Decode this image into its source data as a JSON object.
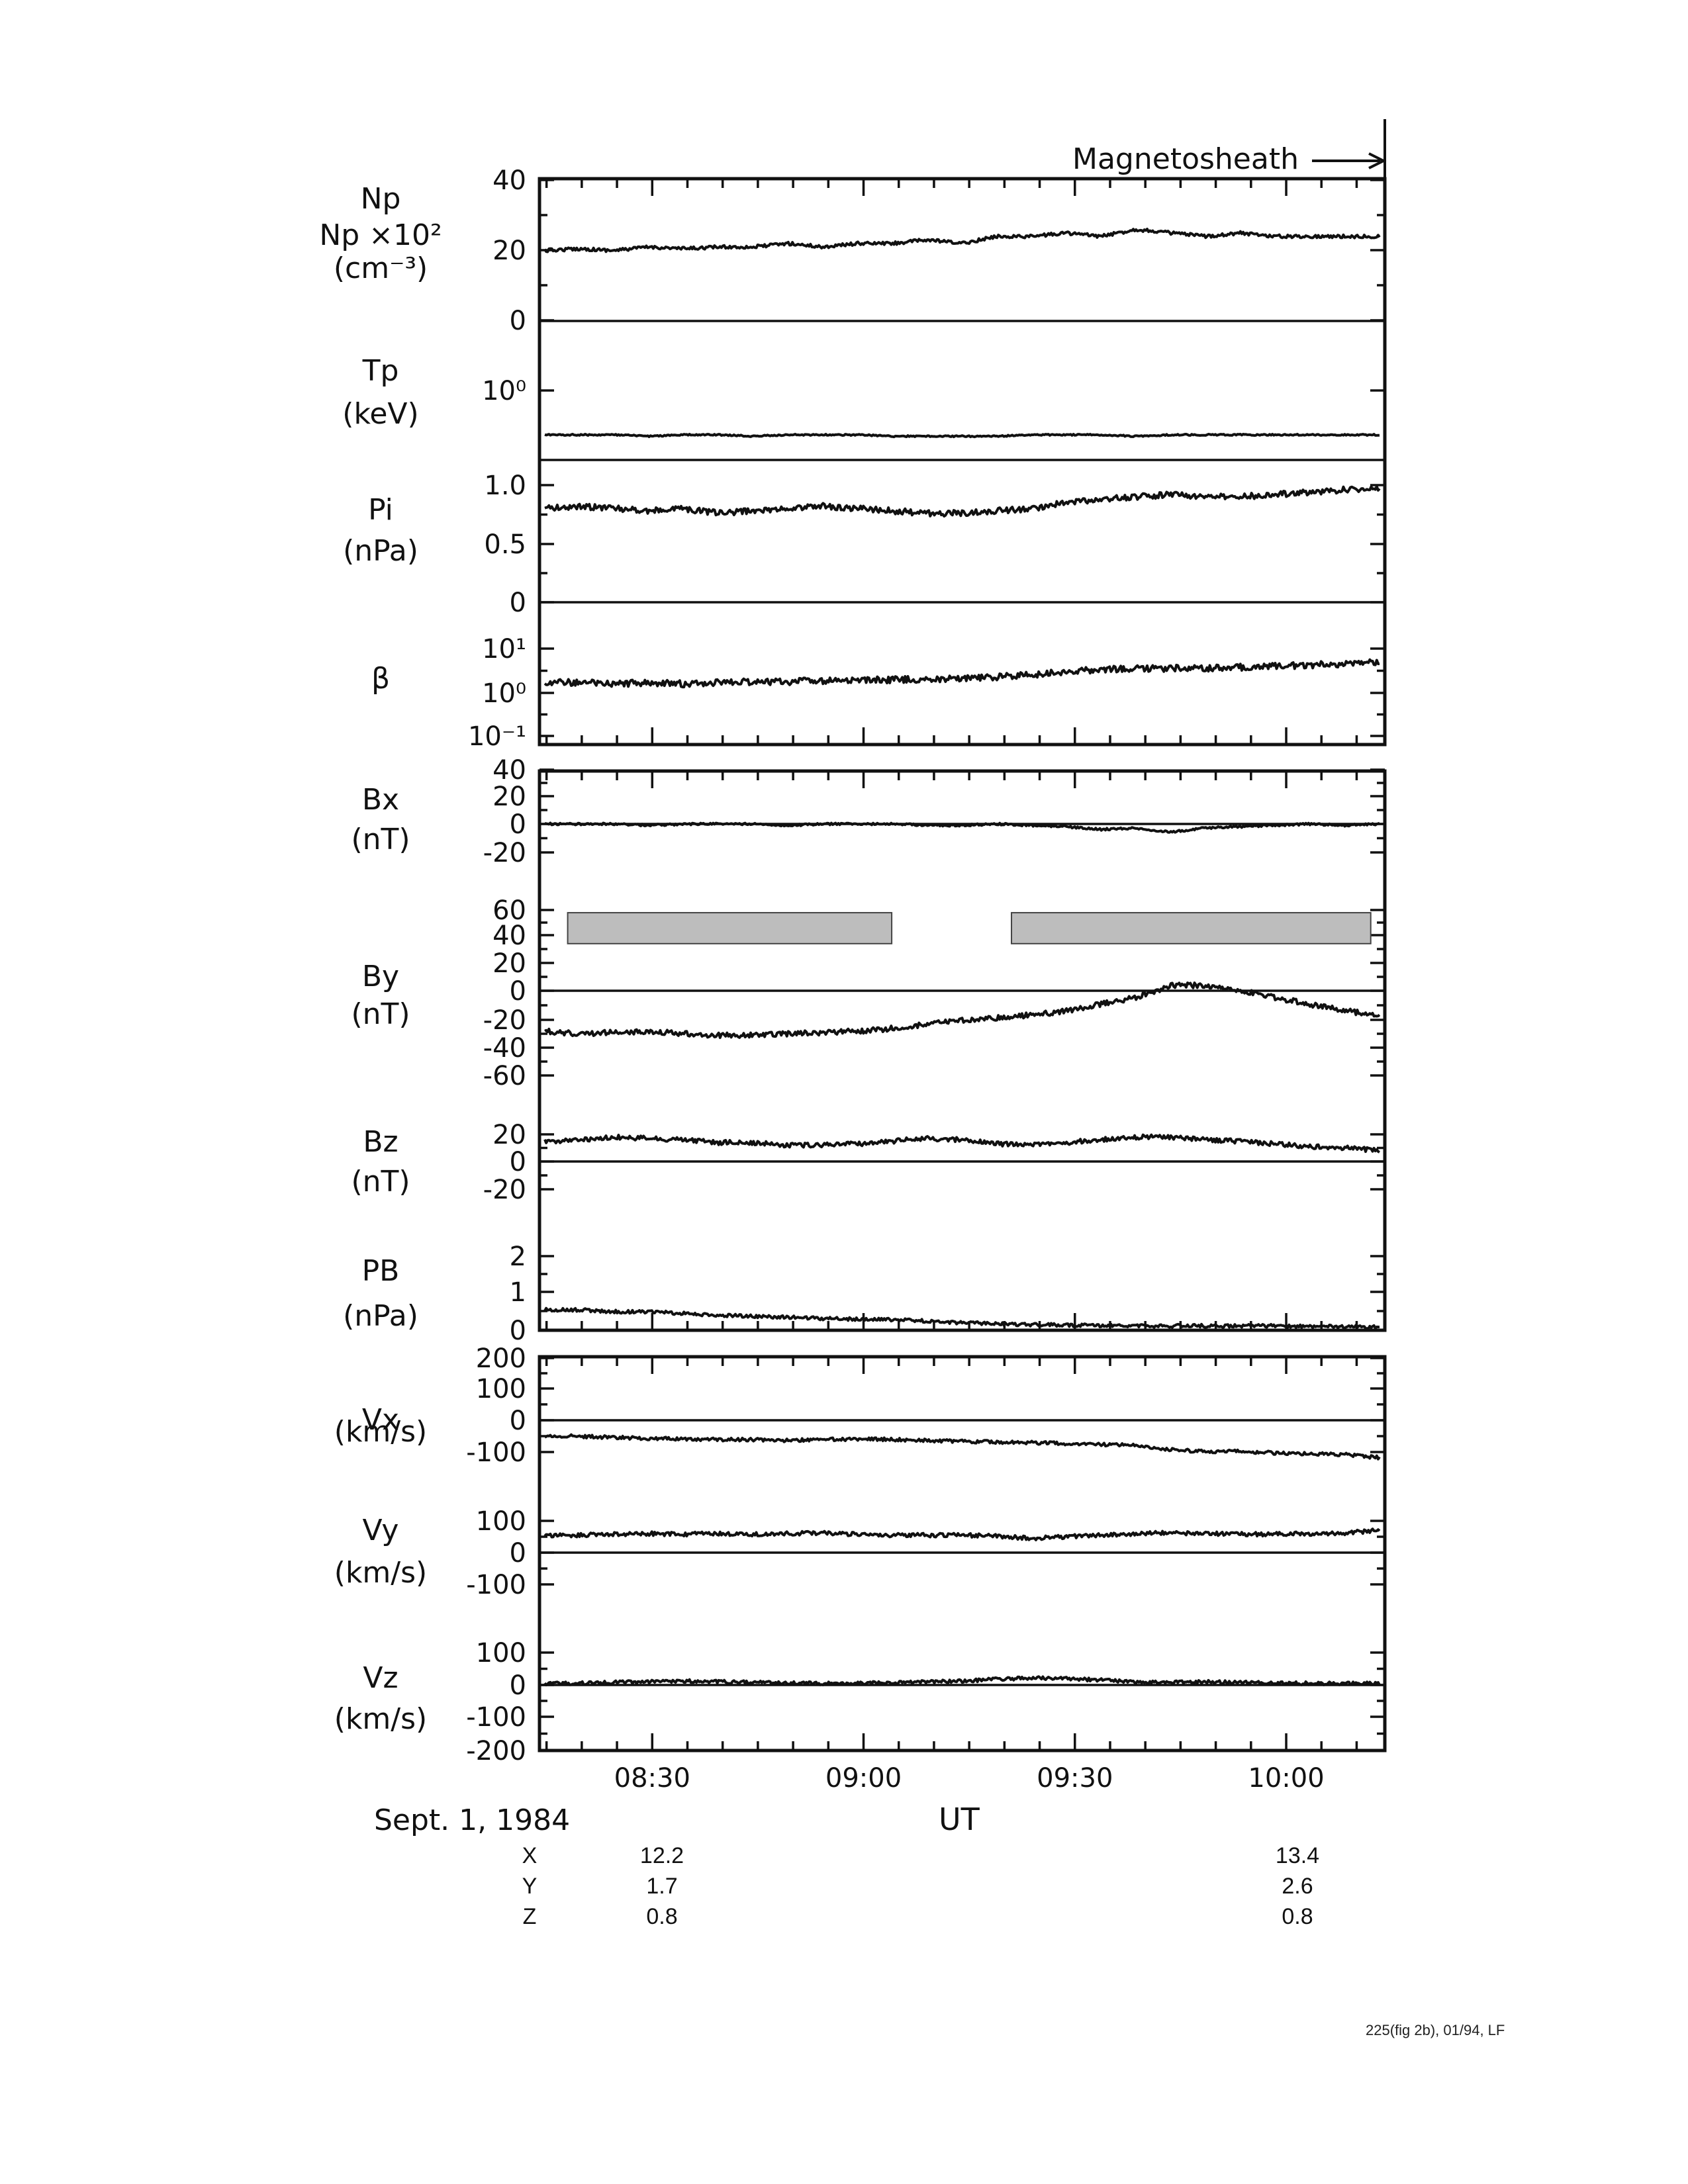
{
  "chart_data": {
    "type": "line",
    "title": "",
    "annotation": "Magnetosheath",
    "date_label": "Sept. 1, 1984",
    "xlabel": "UT",
    "x_ticks": [
      "08:30",
      "09:00",
      "09:30",
      "10:00"
    ],
    "x_range": [
      "08:14",
      "10:14"
    ],
    "panels": [
      {
        "id": "np",
        "label": [
          "Np",
          "Np ×10²",
          "(cm⁻³)"
        ],
        "scale": "linear",
        "ylim": [
          0,
          40
        ],
        "ticks": [
          "40",
          "20",
          "0"
        ],
        "series": {
          "name": "Np",
          "values": [
            20,
            20.5,
            20,
            21,
            20.5,
            21,
            21,
            22,
            21,
            22,
            22,
            23,
            22,
            24,
            24,
            25,
            24,
            26,
            25,
            24,
            25,
            24,
            24,
            24,
            24
          ]
        }
      },
      {
        "id": "tp",
        "label": [
          "Tp",
          "(keV)"
        ],
        "scale": "log",
        "ticks": [
          "10⁰"
        ],
        "series": {
          "name": "Tp",
          "values": [
            0.2,
            0.2,
            0.2,
            0.19,
            0.2,
            0.2,
            0.19,
            0.2,
            0.2,
            0.2,
            0.19,
            0.19,
            0.19,
            0.19,
            0.2,
            0.2,
            0.2,
            0.19,
            0.2,
            0.2,
            0.2,
            0.2,
            0.2,
            0.2,
            0.2
          ]
        }
      },
      {
        "id": "pi",
        "label": [
          "Pi",
          "(nPa)"
        ],
        "scale": "linear",
        "ylim": [
          0,
          1.2
        ],
        "ticks": [
          "1.0",
          "0.5",
          "0"
        ],
        "series": {
          "name": "Pi",
          "values": [
            0.8,
            0.82,
            0.8,
            0.78,
            0.8,
            0.76,
            0.78,
            0.8,
            0.82,
            0.8,
            0.78,
            0.76,
            0.76,
            0.78,
            0.8,
            0.85,
            0.88,
            0.9,
            0.92,
            0.9,
            0.9,
            0.92,
            0.94,
            0.96,
            0.98
          ]
        }
      },
      {
        "id": "beta",
        "label": [
          "β"
        ],
        "scale": "log",
        "ylim": [
          0.1,
          100
        ],
        "ticks": [
          "10¹",
          "10⁰",
          "10⁻¹"
        ],
        "series": {
          "name": "beta",
          "values": [
            1.8,
            1.7,
            1.6,
            1.7,
            1.6,
            1.7,
            1.8,
            1.8,
            1.9,
            1.9,
            2.0,
            2.0,
            2.1,
            2.3,
            2.6,
            3.0,
            3.4,
            3.5,
            3.6,
            3.6,
            3.8,
            4.0,
            4.2,
            4.6,
            5.0
          ]
        }
      },
      {
        "id": "bx",
        "label": [
          "Bx",
          "(nT)"
        ],
        "scale": "linear",
        "ylim": [
          -30,
          40
        ],
        "ticks": [
          "40",
          "20",
          "0",
          "-20"
        ],
        "series": {
          "name": "Bx",
          "values": [
            0,
            0,
            0,
            -1,
            0,
            0,
            0,
            -1,
            0,
            0,
            0,
            -1,
            -1,
            0,
            -1,
            -2,
            -4,
            -3,
            -6,
            -3,
            -2,
            -1,
            0,
            -1,
            0
          ]
        }
      },
      {
        "id": "by",
        "label": [
          "By",
          "(nT)"
        ],
        "scale": "linear",
        "ylim": [
          -75,
          75
        ],
        "ticks": [
          "60",
          "40",
          "20",
          "0",
          "-20",
          "-40",
          "-60"
        ],
        "shaded": [
          [
            "08:18",
            "09:04"
          ],
          [
            "09:21",
            "10:12"
          ]
        ],
        "shaded_range": [
          35,
          58
        ],
        "series": {
          "name": "By",
          "values": [
            -30,
            -32,
            -31,
            -30,
            -32,
            -33,
            -33,
            -32,
            -31,
            -30,
            -28,
            -25,
            -22,
            -20,
            -18,
            -15,
            -10,
            -5,
            4,
            4,
            0,
            -5,
            -10,
            -15,
            -18
          ]
        }
      },
      {
        "id": "bz",
        "label": [
          "Bz",
          "(nT)"
        ],
        "scale": "linear",
        "ylim": [
          -25,
          35
        ],
        "ticks": [
          "20",
          "0",
          "-20"
        ],
        "series": {
          "name": "Bz",
          "values": [
            15,
            16,
            18,
            17,
            16,
            14,
            14,
            12,
            12,
            13,
            15,
            17,
            16,
            13,
            12,
            14,
            16,
            18,
            18,
            16,
            15,
            13,
            11,
            10,
            8
          ]
        }
      },
      {
        "id": "pb",
        "label": [
          "PB",
          "(nPa)"
        ],
        "scale": "linear",
        "ylim": [
          0,
          3
        ],
        "ticks": [
          "2",
          "1",
          "0"
        ],
        "series": {
          "name": "PB",
          "values": [
            0.55,
            0.55,
            0.5,
            0.5,
            0.45,
            0.4,
            0.38,
            0.35,
            0.32,
            0.3,
            0.28,
            0.25,
            0.2,
            0.18,
            0.15,
            0.14,
            0.13,
            0.12,
            0.12,
            0.12,
            0.12,
            0.12,
            0.1,
            0.1,
            0.08
          ]
        }
      },
      {
        "id": "vx",
        "label": [
          "Vx",
          "(km/s)"
        ],
        "scale": "linear",
        "ylim": [
          -200,
          200
        ],
        "ticks": [
          "200",
          "100",
          "0",
          "-100"
        ],
        "series": {
          "name": "Vx",
          "values": [
            -50,
            -52,
            -55,
            -58,
            -60,
            -62,
            -62,
            -65,
            -62,
            -60,
            -62,
            -65,
            -68,
            -70,
            -72,
            -75,
            -78,
            -80,
            -95,
            -100,
            -100,
            -105,
            -108,
            -110,
            -120
          ]
        }
      },
      {
        "id": "vy",
        "label": [
          "Vy",
          "(km/s)"
        ],
        "scale": "linear",
        "ylim": [
          -150,
          150
        ],
        "ticks": [
          "100",
          "0",
          "-100"
        ],
        "series": {
          "name": "Vy",
          "values": [
            55,
            55,
            58,
            60,
            58,
            60,
            58,
            60,
            62,
            58,
            55,
            55,
            55,
            52,
            45,
            50,
            55,
            60,
            62,
            60,
            58,
            58,
            60,
            62,
            70
          ]
        }
      },
      {
        "id": "vz",
        "label": [
          "Vz",
          "(km/s)"
        ],
        "scale": "linear",
        "ylim": [
          -200,
          150
        ],
        "ticks": [
          "100",
          "0",
          "-100",
          "-200"
        ],
        "series": {
          "name": "Vz",
          "values": [
            5,
            5,
            8,
            10,
            12,
            10,
            8,
            6,
            5,
            6,
            8,
            10,
            12,
            18,
            22,
            20,
            15,
            10,
            8,
            10,
            8,
            6,
            5,
            5,
            5
          ]
        }
      }
    ],
    "positions": {
      "labels": [
        "X",
        "Y",
        "Z"
      ],
      "start": [
        "12.2",
        "1.7",
        "0.8"
      ],
      "end": [
        "13.4",
        "2.6",
        "0.8"
      ]
    }
  },
  "footer": "225(fig 2b), 01/94, LF"
}
